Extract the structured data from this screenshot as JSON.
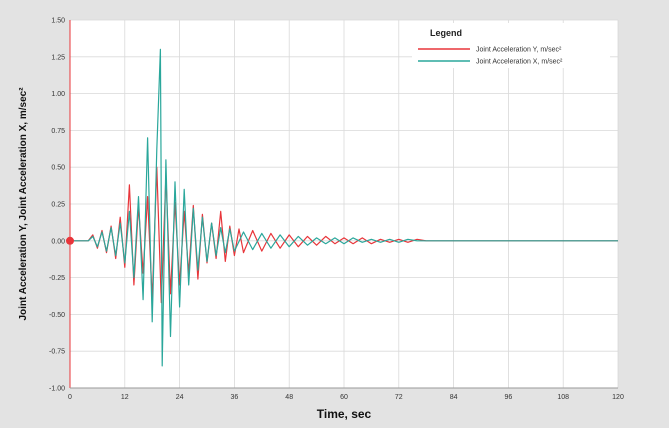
{
  "chart_data": {
    "type": "line",
    "title": "",
    "xlabel": "Time,  sec",
    "ylabel": "Joint Acceleration  Y, Joint Acceleration X,  m/sec²",
    "xlim": [
      0,
      120
    ],
    "ylim": [
      -1.0,
      1.5
    ],
    "x_ticks": [
      "0",
      "12",
      "24",
      "36",
      "48",
      "60",
      "72",
      "84",
      "96",
      "108",
      "120"
    ],
    "y_ticks": [
      "1.50",
      "1.25",
      "1.00",
      "0.75",
      "0.50",
      "0.25",
      "0.00",
      "-0.25",
      "-0.50",
      "-0.75",
      "-1.00"
    ],
    "grid": true,
    "legend": {
      "title": "Legend",
      "position": "top-right",
      "entries": [
        "Joint Acceleration  Y,  m/sec²",
        "Joint Acceleration X,  m/sec²"
      ]
    },
    "series": [
      {
        "name": "Joint Acceleration  Y,  m/sec²",
        "color": "#e8353a",
        "x": [
          0,
          4,
          5,
          6,
          7,
          8,
          9,
          10,
          11,
          12,
          13,
          14,
          15,
          16,
          17,
          18,
          19,
          20,
          21,
          22,
          23,
          24,
          25,
          26,
          27,
          28,
          29,
          30,
          31,
          32,
          33,
          34,
          35,
          36,
          37,
          38,
          40,
          42,
          44,
          46,
          48,
          50,
          52,
          54,
          56,
          58,
          60,
          62,
          64,
          66,
          68,
          70,
          72,
          74,
          76,
          78,
          80,
          120
        ],
        "y": [
          0,
          0,
          0.04,
          -0.05,
          0.07,
          -0.08,
          0.1,
          -0.12,
          0.16,
          -0.18,
          0.38,
          -0.3,
          0.24,
          -0.22,
          0.3,
          -0.4,
          0.5,
          -0.42,
          0.44,
          -0.36,
          0.26,
          -0.3,
          0.2,
          -0.22,
          0.24,
          -0.26,
          0.18,
          -0.15,
          0.12,
          -0.12,
          0.2,
          -0.14,
          0.1,
          -0.1,
          0.08,
          -0.08,
          0.07,
          -0.07,
          0.05,
          -0.05,
          0.04,
          -0.04,
          0.03,
          -0.03,
          0.03,
          -0.02,
          0.02,
          -0.02,
          0.02,
          -0.02,
          0.01,
          -0.01,
          0.01,
          -0.01,
          0.01,
          0,
          0,
          0
        ]
      },
      {
        "name": "Joint Acceleration X,  m/sec²",
        "color": "#2aa79b",
        "x": [
          0,
          4,
          5,
          6,
          7,
          8,
          9,
          10,
          11,
          12,
          13,
          14,
          15,
          16,
          17,
          18,
          19,
          19.8,
          20.2,
          21,
          22,
          23,
          24,
          25,
          26,
          27,
          28,
          29,
          30,
          31,
          32,
          33,
          34,
          35,
          36,
          38,
          40,
          42,
          44,
          46,
          48,
          50,
          52,
          54,
          56,
          58,
          60,
          62,
          64,
          66,
          68,
          70,
          72,
          74,
          76,
          78,
          80,
          120
        ],
        "y": [
          0,
          0,
          0.03,
          -0.04,
          0.06,
          -0.07,
          0.09,
          -0.1,
          0.12,
          -0.15,
          0.2,
          -0.25,
          0.3,
          -0.4,
          0.7,
          -0.55,
          0.62,
          1.3,
          -0.85,
          0.55,
          -0.65,
          0.4,
          -0.45,
          0.35,
          -0.3,
          0.22,
          -0.2,
          0.16,
          -0.14,
          0.12,
          -0.1,
          0.09,
          -0.08,
          0.08,
          -0.07,
          0.06,
          -0.06,
          0.05,
          -0.05,
          0.04,
          -0.04,
          0.03,
          -0.03,
          0.02,
          -0.02,
          0.02,
          -0.02,
          0.02,
          -0.01,
          0.01,
          -0.01,
          0.01,
          -0.01,
          0.01,
          0,
          0,
          0,
          0
        ]
      }
    ]
  }
}
